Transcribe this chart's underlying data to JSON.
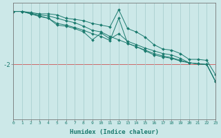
{
  "xlabel": "Humidex (Indice chaleur)",
  "background_color": "#cce8e8",
  "line_color": "#1a7a6e",
  "grid_color": "#aacfcf",
  "hline_color": "#cc6666",
  "ytick_label": "-2",
  "ytick_value": -2,
  "xmin": 0,
  "xmax": 23,
  "ymin": -3.6,
  "ymax": -0.2,
  "hline_y": -2,
  "series": [
    {
      "x": [
        0,
        1,
        2,
        3,
        4,
        5,
        6,
        7,
        8,
        9,
        10,
        11,
        12,
        13,
        14,
        15,
        16,
        17,
        18,
        19,
        20,
        21,
        22,
        23
      ],
      "y": [
        -0.45,
        -0.45,
        -0.48,
        -0.52,
        -0.52,
        -0.55,
        -0.65,
        -0.68,
        -0.72,
        -0.8,
        -0.85,
        -0.9,
        -0.4,
        -0.95,
        -1.05,
        -1.2,
        -1.42,
        -1.55,
        -1.58,
        -1.68,
        -1.85,
        -1.85,
        -1.88,
        -2.3
      ]
    },
    {
      "x": [
        0,
        1,
        2,
        3,
        4,
        5,
        6,
        7,
        8,
        9,
        10,
        11,
        12,
        13,
        14,
        15,
        16,
        17,
        18,
        19,
        20,
        21,
        22,
        23
      ],
      "y": [
        -0.45,
        -0.45,
        -0.5,
        -0.55,
        -0.58,
        -0.65,
        -0.72,
        -0.78,
        -0.88,
        -1.0,
        -1.05,
        -1.18,
        -1.28,
        -1.38,
        -1.48,
        -1.6,
        -1.72,
        -1.78,
        -1.82,
        -1.9,
        -1.95,
        -1.98,
        -2.0,
        -2.5
      ]
    },
    {
      "x": [
        0,
        1,
        2,
        3,
        4,
        5,
        6,
        7,
        8,
        9,
        10,
        11,
        12,
        13,
        14,
        15,
        16,
        17,
        18,
        19,
        20,
        21,
        22,
        23
      ],
      "y": [
        -0.45,
        -0.45,
        -0.52,
        -0.58,
        -0.65,
        -0.8,
        -0.85,
        -0.92,
        -1.0,
        -1.1,
        -1.18,
        -1.3,
        -0.65,
        -1.38,
        -1.48,
        -1.58,
        -1.68,
        -1.75,
        -1.8,
        -1.88,
        -1.95,
        -1.98,
        -2.0,
        -2.5
      ]
    },
    {
      "x": [
        0,
        1,
        2,
        3,
        4,
        5,
        6,
        7,
        8,
        9,
        10,
        11,
        12,
        13,
        14,
        15,
        16,
        17,
        18,
        19,
        20,
        21,
        22,
        23
      ],
      "y": [
        -0.45,
        -0.45,
        -0.52,
        -0.6,
        -0.65,
        -0.85,
        -0.88,
        -0.95,
        -1.05,
        -1.28,
        -1.08,
        -1.25,
        -1.1,
        -1.32,
        -1.42,
        -1.52,
        -1.6,
        -1.68,
        -1.72,
        -1.82,
        -1.95,
        -1.98,
        -2.0,
        -2.5
      ]
    }
  ]
}
